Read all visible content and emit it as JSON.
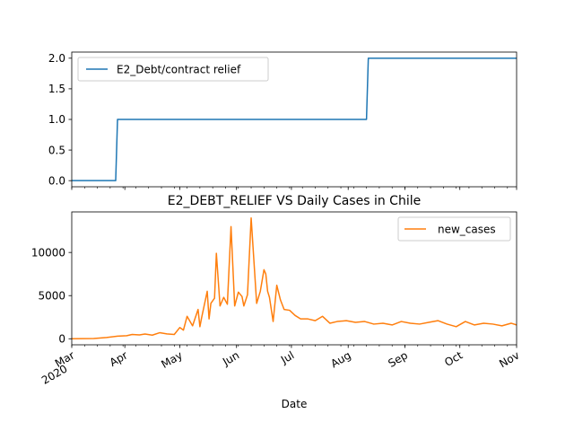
{
  "chart_data": [
    {
      "type": "line",
      "title": "",
      "xlabel": "",
      "ylabel": "",
      "ylim": [
        -0.1,
        2.1
      ],
      "yticks": [
        "0.0",
        "0.5",
        "1.0",
        "1.5",
        "2.0"
      ],
      "ytick_values": [
        0,
        0.5,
        1.0,
        1.5,
        2.0
      ],
      "legend": {
        "placement": "upper left"
      },
      "series": [
        {
          "name": "E2_Debt/contract relief",
          "color": "#1f77b4",
          "x": [
            "2020-03-03",
            "2020-03-27",
            "2020-03-28",
            "2020-08-11",
            "2020-08-12",
            "2020-11-01"
          ],
          "y": [
            0,
            0,
            1,
            1,
            2,
            2
          ]
        }
      ]
    },
    {
      "type": "line",
      "title": "E2_DEBT_RELIEF VS Daily Cases in Chile",
      "xlabel": "Date",
      "ylabel": "",
      "ylim": [
        -700,
        14700
      ],
      "yticks": [
        "0",
        "5000",
        "10000"
      ],
      "ytick_values": [
        0,
        5000,
        10000
      ],
      "xticks": [
        {
          "line1": "Mar",
          "line2": "2020",
          "date": "2020-03-01"
        },
        {
          "line1": "Apr",
          "line2": "",
          "date": "2020-04-01"
        },
        {
          "line1": "May",
          "line2": "",
          "date": "2020-05-01"
        },
        {
          "line1": "Jun",
          "line2": "",
          "date": "2020-06-01"
        },
        {
          "line1": "Jul",
          "line2": "",
          "date": "2020-07-01"
        },
        {
          "line1": "Aug",
          "line2": "",
          "date": "2020-08-01"
        },
        {
          "line1": "Sep",
          "line2": "",
          "date": "2020-09-01"
        },
        {
          "line1": "Oct",
          "line2": "",
          "date": "2020-10-01"
        },
        {
          "line1": "Nov",
          "line2": "",
          "date": "2020-11-01"
        }
      ],
      "legend": {
        "placement": "upper right"
      },
      "series": [
        {
          "name": "new_cases",
          "color": "#ff7f0e",
          "x": [
            "2020-03-03",
            "2020-03-15",
            "2020-03-22",
            "2020-03-28",
            "2020-04-02",
            "2020-04-05",
            "2020-04-09",
            "2020-04-12",
            "2020-04-16",
            "2020-04-20",
            "2020-04-24",
            "2020-04-28",
            "2020-05-01",
            "2020-05-03",
            "2020-05-05",
            "2020-05-08",
            "2020-05-11",
            "2020-05-12",
            "2020-05-13",
            "2020-05-16",
            "2020-05-17",
            "2020-05-18",
            "2020-05-20",
            "2020-05-21",
            "2020-05-23",
            "2020-05-25",
            "2020-05-27",
            "2020-05-29",
            "2020-05-31",
            "2020-06-02",
            "2020-06-04",
            "2020-06-05",
            "2020-06-07",
            "2020-06-09",
            "2020-06-12",
            "2020-06-14",
            "2020-06-16",
            "2020-06-17",
            "2020-06-18",
            "2020-06-19",
            "2020-06-21",
            "2020-06-23",
            "2020-06-25",
            "2020-06-27",
            "2020-06-30",
            "2020-07-03",
            "2020-07-06",
            "2020-07-10",
            "2020-07-14",
            "2020-07-18",
            "2020-07-22",
            "2020-07-26",
            "2020-07-31",
            "2020-08-05",
            "2020-08-10",
            "2020-08-15",
            "2020-08-20",
            "2020-08-25",
            "2020-08-30",
            "2020-09-04",
            "2020-09-09",
            "2020-09-14",
            "2020-09-19",
            "2020-09-24",
            "2020-09-29",
            "2020-10-04",
            "2020-10-09",
            "2020-10-14",
            "2020-10-19",
            "2020-10-24",
            "2020-10-29",
            "2020-11-01"
          ],
          "y": [
            0,
            30,
            150,
            300,
            350,
            500,
            450,
            550,
            420,
            700,
            560,
            500,
            1300,
            1000,
            2600,
            1500,
            3400,
            1400,
            2500,
            5500,
            2300,
            4100,
            4700,
            9900,
            3800,
            4800,
            4000,
            13000,
            3800,
            5400,
            4900,
            3800,
            5100,
            14000,
            4100,
            5500,
            8000,
            7500,
            5500,
            4800,
            2000,
            6200,
            4500,
            3400,
            3300,
            2700,
            2300,
            2300,
            2100,
            2600,
            1800,
            2000,
            2100,
            1900,
            2000,
            1700,
            1800,
            1600,
            2000,
            1800,
            1700,
            1900,
            2100,
            1700,
            1400,
            2000,
            1600,
            1800,
            1700,
            1500,
            1800,
            1600
          ]
        }
      ]
    }
  ]
}
